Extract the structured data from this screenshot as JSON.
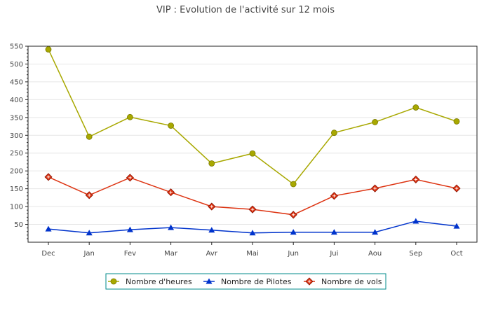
{
  "chart_data": {
    "type": "line",
    "title": "VIP : Evolution de l'activité sur 12 mois",
    "xlabel": "",
    "ylabel": "",
    "categories": [
      "Dec",
      "Jan",
      "Fev",
      "Mar",
      "Avr",
      "Mai",
      "Jun",
      "Jui",
      "Aou",
      "Sep",
      "Oct"
    ],
    "ylim": [
      0,
      550
    ],
    "yticks": [
      50,
      100,
      150,
      200,
      250,
      300,
      350,
      400,
      450,
      500,
      550
    ],
    "grid": true,
    "legend_position": "bottom",
    "series": [
      {
        "name": "Nombre d'heures",
        "color": "#a8a800",
        "marker": "circle",
        "values": [
          541,
          296,
          351,
          327,
          221,
          249,
          163,
          307,
          337,
          378,
          339
        ]
      },
      {
        "name": "Nombre de Pilotes",
        "color": "#0033cc",
        "marker": "triangle",
        "values": [
          37,
          26,
          35,
          41,
          34,
          26,
          28,
          28,
          28,
          59,
          45
        ]
      },
      {
        "name": "Nombre de vols",
        "color": "#dd3311",
        "marker": "diamond",
        "values": [
          183,
          132,
          181,
          140,
          100,
          92,
          77,
          130,
          151,
          176,
          151
        ]
      }
    ]
  }
}
